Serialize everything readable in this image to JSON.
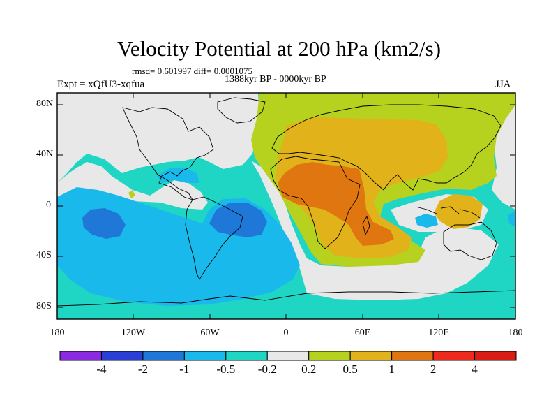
{
  "title": "Velocity Potential at 200 hPa (km2/s)",
  "stats": "rmsd= 0.601997 diff= 0.0001075",
  "period": "1388kyr BP - 0000kyr BP",
  "experiment": "Expt = xQfU3-xqfua",
  "season": "JJA",
  "lat_labels": [
    "80N",
    "40N",
    "0",
    "40S",
    "80S"
  ],
  "lon_labels": [
    "180",
    "120W",
    "60W",
    "0",
    "60E",
    "120E",
    "180"
  ],
  "colorbar": {
    "labels": [
      "-4",
      "-2",
      "-1",
      "-0.5",
      "-0.2",
      "0.2",
      "0.5",
      "1",
      "2",
      "4"
    ],
    "colors": [
      "#8a2be2",
      "#2a3fd6",
      "#1f78d8",
      "#19b9ec",
      "#1fd6c4",
      "#e8e8e8",
      "#b6d11e",
      "#e2b21a",
      "#e0760f",
      "#ee2a1c",
      "#d81e14"
    ]
  }
}
